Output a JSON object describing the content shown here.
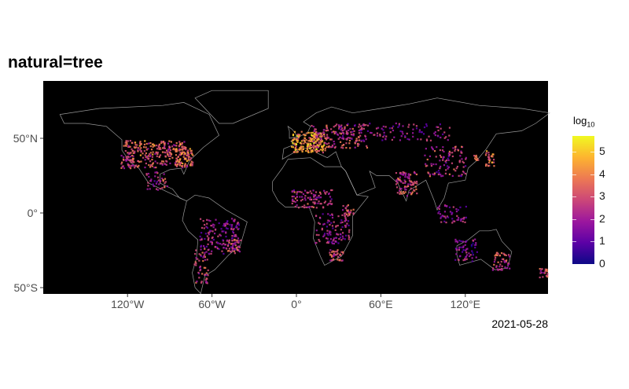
{
  "title": "natural=tree",
  "caption": "2021-05-28",
  "chart_data": {
    "type": "heatmap",
    "title": "natural=tree",
    "x_ticks": [
      "120°W",
      "60°W",
      "0°",
      "60°E",
      "120°E"
    ],
    "x_tick_values": [
      -120,
      -60,
      0,
      60,
      120
    ],
    "y_ticks": [
      "50°N",
      "0°",
      "50°S"
    ],
    "y_tick_values": [
      50,
      0,
      -50
    ],
    "xlim": [
      -180,
      180
    ],
    "ylim": [
      -56,
      88
    ],
    "background": "#000000",
    "coastline_color": "#bdbdbd",
    "legend": {
      "title": "log",
      "title_subscript": "10",
      "ticks": [
        "0",
        "1",
        "2",
        "3",
        "4",
        "5"
      ],
      "range": [
        0,
        5.7
      ],
      "palette": "plasma",
      "colors": [
        "#0d0887",
        "#5c01a6",
        "#9c179e",
        "#cc4778",
        "#ed7953",
        "#fdb42f",
        "#f0f921"
      ],
      "placement": "right"
    },
    "hotspots_description_free": true
  }
}
